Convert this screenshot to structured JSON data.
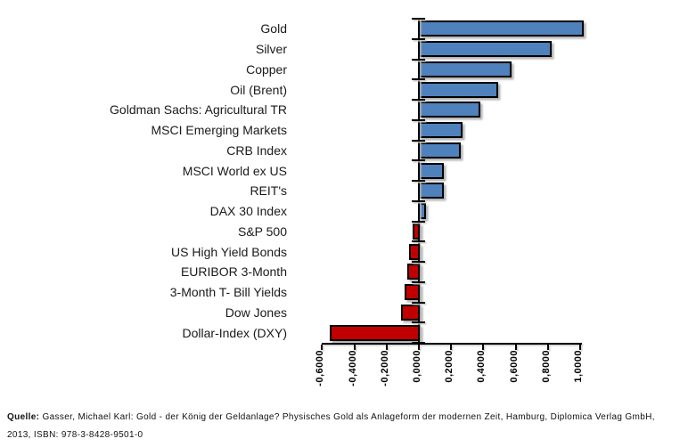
{
  "chart_data": {
    "type": "bar",
    "orientation": "horizontal",
    "title": "",
    "xlabel": "",
    "ylabel": "",
    "categories": [
      "Gold",
      "Silver",
      "Copper",
      "Oil (Brent)",
      "Goldman Sachs: Agricultural TR",
      "MSCI Emerging Markets",
      "CRB Index",
      "MSCI World ex US",
      "REIT's",
      "DAX 30 Index",
      "S&P 500",
      "US High Yield Bonds",
      "EURIBOR 3-Month",
      "3-Month T- Bill Yields",
      "Dow Jones",
      "Dollar-Index (DXY)"
    ],
    "values": [
      1.0,
      0.8,
      0.55,
      0.47,
      0.36,
      0.25,
      0.24,
      0.13,
      0.13,
      0.02,
      -0.03,
      -0.05,
      -0.06,
      -0.08,
      -0.1,
      -0.54
    ],
    "xlim": [
      -0.6,
      1.0
    ],
    "xticks": [
      -0.6,
      -0.4,
      -0.2,
      0.0,
      0.2,
      0.4,
      0.6,
      0.8,
      1.0
    ],
    "xtick_labels": [
      "-0,6000",
      "-0,4000",
      "-0,2000",
      "0,0000",
      "0,2000",
      "0,4000",
      "0,6000",
      "0,8000",
      "1,0000"
    ],
    "positive_color": "#4F81BD",
    "negative_color": "#C00000",
    "grid": false,
    "legend_position": "none"
  },
  "footer": {
    "prefix": "Quelle:",
    "line1": "Gasser, Michael Karl: Gold - der König der Geldanlage? Physisches Gold als Anlageform der modernen Zeit, Hamburg, Diplomica Verlag GmbH,",
    "line2": "2013, ISBN: 978-3-8428-9501-0"
  }
}
